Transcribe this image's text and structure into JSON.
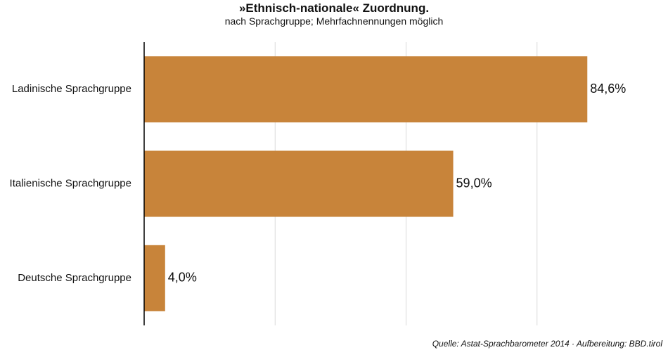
{
  "chart_data": {
    "type": "bar",
    "orientation": "horizontal",
    "title": "»Ethnisch-nationale« Zuordnung.",
    "subtitle": "nach Sprachgruppe; Mehrfachnennungen möglich",
    "categories": [
      "Ladinische Sprachgruppe",
      "Italienische Sprachgruppe",
      "Deutsche Sprachgruppe"
    ],
    "values": [
      84.6,
      59.0,
      4.0
    ],
    "value_labels": [
      "84,6%",
      "59,0%",
      "4,0%"
    ],
    "xlim": [
      0,
      100
    ],
    "grid": true,
    "bar_color": "#c8843a"
  },
  "source": "Quelle: Astat-Sprachbarometer 2014 · Aufbereitung: BBD.tirol"
}
